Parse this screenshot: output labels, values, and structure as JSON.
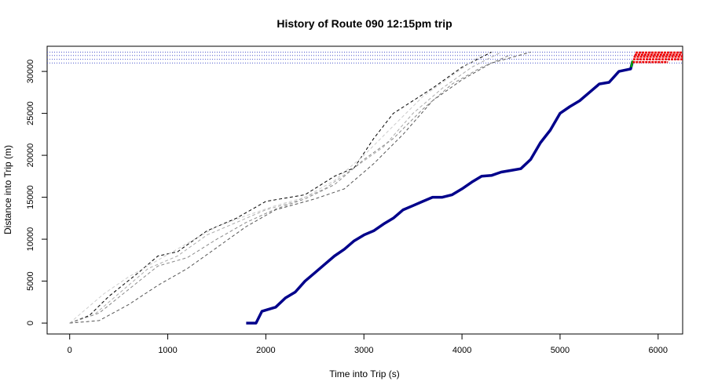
{
  "chart_data": {
    "type": "line",
    "title": "History of Route 090 12:15pm trip",
    "xlabel": "Time into Trip (s)",
    "ylabel": "Distance into Trip (m)",
    "xlim": [
      -230,
      6250
    ],
    "ylim": [
      -1300,
      33000
    ],
    "x_ticks": [
      0,
      1000,
      2000,
      3000,
      4000,
      5000,
      6000
    ],
    "y_ticks": [
      0,
      5000,
      10000,
      15000,
      20000,
      25000,
      30000
    ],
    "reference_lines_y": [
      31000,
      31450,
      31900,
      32300
    ],
    "reference_line_color": "#4a55cc",
    "historical_series": [
      {
        "style": "dashed",
        "color": "#000000",
        "points": [
          [
            0,
            0
          ],
          [
            200,
            900
          ],
          [
            400,
            3200
          ],
          [
            700,
            6000
          ],
          [
            900,
            8000
          ],
          [
            1100,
            8500
          ],
          [
            1400,
            11000
          ],
          [
            1700,
            12500
          ],
          [
            2000,
            14500
          ],
          [
            2400,
            15300
          ],
          [
            2700,
            17500
          ],
          [
            2900,
            18500
          ],
          [
            3100,
            22000
          ],
          [
            3300,
            25000
          ],
          [
            3700,
            28000
          ],
          [
            4000,
            30500
          ],
          [
            4300,
            32300
          ]
        ]
      },
      {
        "style": "dashed",
        "color": "#555555",
        "points": [
          [
            0,
            0
          ],
          [
            300,
            300
          ],
          [
            600,
            2200
          ],
          [
            900,
            4500
          ],
          [
            1200,
            6500
          ],
          [
            1500,
            9000
          ],
          [
            1800,
            11500
          ],
          [
            2100,
            13500
          ],
          [
            2500,
            14800
          ],
          [
            2800,
            16000
          ],
          [
            3100,
            19000
          ],
          [
            3400,
            22500
          ],
          [
            3700,
            26500
          ],
          [
            4000,
            29000
          ],
          [
            4300,
            31000
          ],
          [
            4700,
            32300
          ]
        ]
      },
      {
        "style": "dashed",
        "color": "#aaaaaa",
        "points": [
          [
            0,
            0
          ],
          [
            250,
            1000
          ],
          [
            500,
            3500
          ],
          [
            800,
            6500
          ],
          [
            1100,
            8000
          ],
          [
            1400,
            10500
          ],
          [
            1700,
            12000
          ],
          [
            2000,
            13500
          ],
          [
            2300,
            14500
          ],
          [
            2600,
            16000
          ],
          [
            2900,
            18500
          ],
          [
            3200,
            21000
          ],
          [
            3500,
            25000
          ],
          [
            3800,
            28000
          ],
          [
            4100,
            30500
          ],
          [
            4400,
            32300
          ]
        ]
      },
      {
        "style": "dashed",
        "color": "#cccccc",
        "points": [
          [
            0,
            0
          ],
          [
            150,
            1500
          ],
          [
            350,
            3500
          ],
          [
            600,
            5500
          ],
          [
            900,
            7500
          ],
          [
            1200,
            9500
          ],
          [
            1500,
            11500
          ],
          [
            1800,
            12800
          ],
          [
            2100,
            14000
          ],
          [
            2400,
            15000
          ],
          [
            2700,
            17000
          ],
          [
            3000,
            20000
          ],
          [
            3300,
            23500
          ],
          [
            3600,
            27000
          ],
          [
            3900,
            29500
          ],
          [
            4200,
            32000
          ]
        ]
      },
      {
        "style": "dashed",
        "color": "#888888",
        "points": [
          [
            0,
            0
          ],
          [
            300,
            1200
          ],
          [
            600,
            4000
          ],
          [
            900,
            6800
          ],
          [
            1200,
            7800
          ],
          [
            1500,
            10000
          ],
          [
            1800,
            12000
          ],
          [
            2100,
            13600
          ],
          [
            2400,
            14800
          ],
          [
            2700,
            16500
          ],
          [
            3000,
            19500
          ],
          [
            3300,
            22000
          ],
          [
            3600,
            25500
          ],
          [
            3900,
            28500
          ],
          [
            4200,
            30500
          ],
          [
            4500,
            32000
          ]
        ]
      }
    ],
    "current_trip": {
      "color": "#00008b",
      "points": [
        [
          1800,
          0
        ],
        [
          1900,
          0
        ],
        [
          1960,
          1400
        ],
        [
          2100,
          1900
        ],
        [
          2200,
          3000
        ],
        [
          2300,
          3700
        ],
        [
          2400,
          5000
        ],
        [
          2500,
          6000
        ],
        [
          2600,
          7000
        ],
        [
          2700,
          8000
        ],
        [
          2800,
          8800
        ],
        [
          2900,
          9800
        ],
        [
          3000,
          10500
        ],
        [
          3100,
          11000
        ],
        [
          3200,
          11800
        ],
        [
          3300,
          12500
        ],
        [
          3400,
          13500
        ],
        [
          3500,
          14000
        ],
        [
          3600,
          14500
        ],
        [
          3700,
          15000
        ],
        [
          3800,
          15000
        ],
        [
          3900,
          15300
        ],
        [
          4000,
          16000
        ],
        [
          4100,
          16800
        ],
        [
          4200,
          17500
        ],
        [
          4300,
          17600
        ],
        [
          4400,
          18000
        ],
        [
          4500,
          18200
        ],
        [
          4600,
          18400
        ],
        [
          4700,
          19500
        ],
        [
          4800,
          21500
        ],
        [
          4900,
          23000
        ],
        [
          5000,
          25000
        ],
        [
          5100,
          25800
        ],
        [
          5200,
          26500
        ],
        [
          5300,
          27500
        ],
        [
          5400,
          28500
        ],
        [
          5500,
          28700
        ],
        [
          5600,
          30000
        ],
        [
          5720,
          30300
        ],
        [
          5740,
          31200
        ]
      ]
    },
    "current_marker": {
      "color": "#00aa00",
      "points": [
        [
          5725,
          30500
        ],
        [
          5740,
          31300
        ]
      ]
    },
    "predicted": {
      "color": "#ee0000",
      "segments": [
        [
          [
            5740,
            31100
          ],
          [
            6100,
            31100
          ]
        ],
        [
          [
            5745,
            31450
          ],
          [
            6250,
            31450
          ]
        ],
        [
          [
            5750,
            31750
          ],
          [
            6250,
            31750
          ]
        ],
        [
          [
            5760,
            32000
          ],
          [
            6250,
            32000
          ]
        ],
        [
          [
            5770,
            32250
          ],
          [
            6250,
            32250
          ]
        ]
      ]
    }
  }
}
